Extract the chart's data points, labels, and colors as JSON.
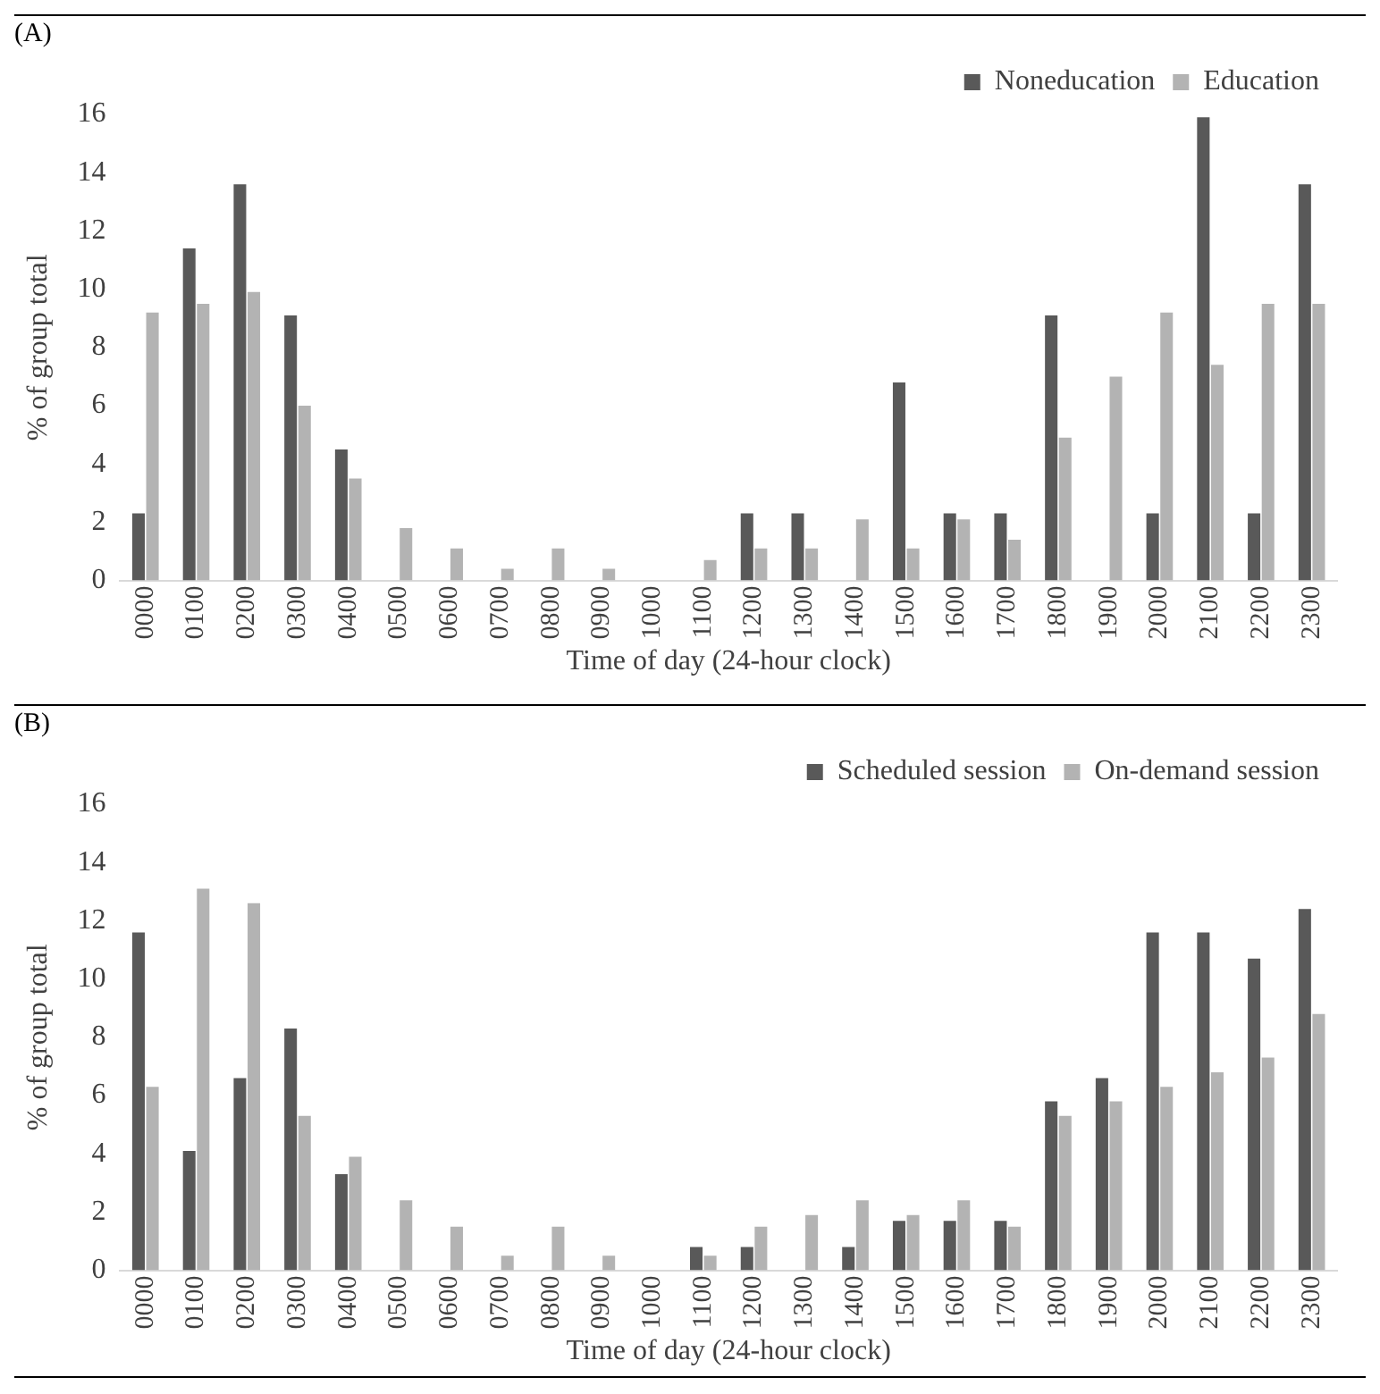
{
  "chart_data": [
    {
      "type": "bar",
      "annotations": [
        "(A)"
      ],
      "xlabel": "Time of day (24-hour clock)",
      "ylabel": "% of group total",
      "categories": [
        "0000",
        "0100",
        "0200",
        "0300",
        "0400",
        "0500",
        "0600",
        "0700",
        "0800",
        "0900",
        "1000",
        "1100",
        "1200",
        "1300",
        "1400",
        "1500",
        "1600",
        "1700",
        "1800",
        "1900",
        "2000",
        "2100",
        "2200",
        "2300"
      ],
      "series": [
        {
          "name": "Noneducation",
          "color": "#595959",
          "values": [
            2.3,
            11.4,
            13.6,
            9.1,
            4.5,
            0,
            0,
            0,
            0,
            0,
            0,
            0,
            2.3,
            2.3,
            0,
            6.8,
            2.3,
            2.3,
            9.1,
            0,
            2.3,
            15.9,
            2.3,
            13.6
          ]
        },
        {
          "name": "Education",
          "color": "#b3b3b3",
          "values": [
            9.2,
            9.5,
            9.9,
            6.0,
            3.5,
            1.8,
            1.1,
            0.4,
            1.1,
            0.4,
            0,
            0.7,
            1.1,
            1.1,
            2.1,
            1.1,
            2.1,
            1.4,
            4.9,
            7.0,
            9.2,
            7.4,
            9.5,
            9.5
          ]
        }
      ],
      "ylim": [
        0,
        16
      ],
      "yticks": [
        0,
        2,
        4,
        6,
        8,
        10,
        12,
        14,
        16
      ],
      "grid": false,
      "legend": "top right"
    },
    {
      "type": "bar",
      "annotations": [
        "(B)"
      ],
      "xlabel": "Time of day (24-hour clock)",
      "ylabel": "% of group total",
      "categories": [
        "0000",
        "0100",
        "0200",
        "0300",
        "0400",
        "0500",
        "0600",
        "0700",
        "0800",
        "0900",
        "1000",
        "1100",
        "1200",
        "1300",
        "1400",
        "1500",
        "1600",
        "1700",
        "1800",
        "1900",
        "2000",
        "2100",
        "2200",
        "2300"
      ],
      "series": [
        {
          "name": "Scheduled session",
          "color": "#595959",
          "values": [
            11.6,
            4.1,
            6.6,
            8.3,
            3.3,
            0,
            0,
            0,
            0,
            0,
            0,
            0.8,
            0.8,
            0,
            0.8,
            1.7,
            1.7,
            1.7,
            5.8,
            6.6,
            11.6,
            11.6,
            10.7,
            12.4
          ]
        },
        {
          "name": "On-demand session",
          "color": "#b3b3b3",
          "values": [
            6.3,
            13.1,
            12.6,
            5.3,
            3.9,
            2.4,
            1.5,
            0.5,
            1.5,
            0.5,
            0,
            0.5,
            1.5,
            1.9,
            2.4,
            1.9,
            2.4,
            1.5,
            5.3,
            5.8,
            6.3,
            6.8,
            7.3,
            8.8
          ]
        }
      ],
      "ylim": [
        0,
        16
      ],
      "yticks": [
        0,
        2,
        4,
        6,
        8,
        10,
        12,
        14,
        16
      ],
      "grid": false,
      "legend": "top right"
    }
  ]
}
